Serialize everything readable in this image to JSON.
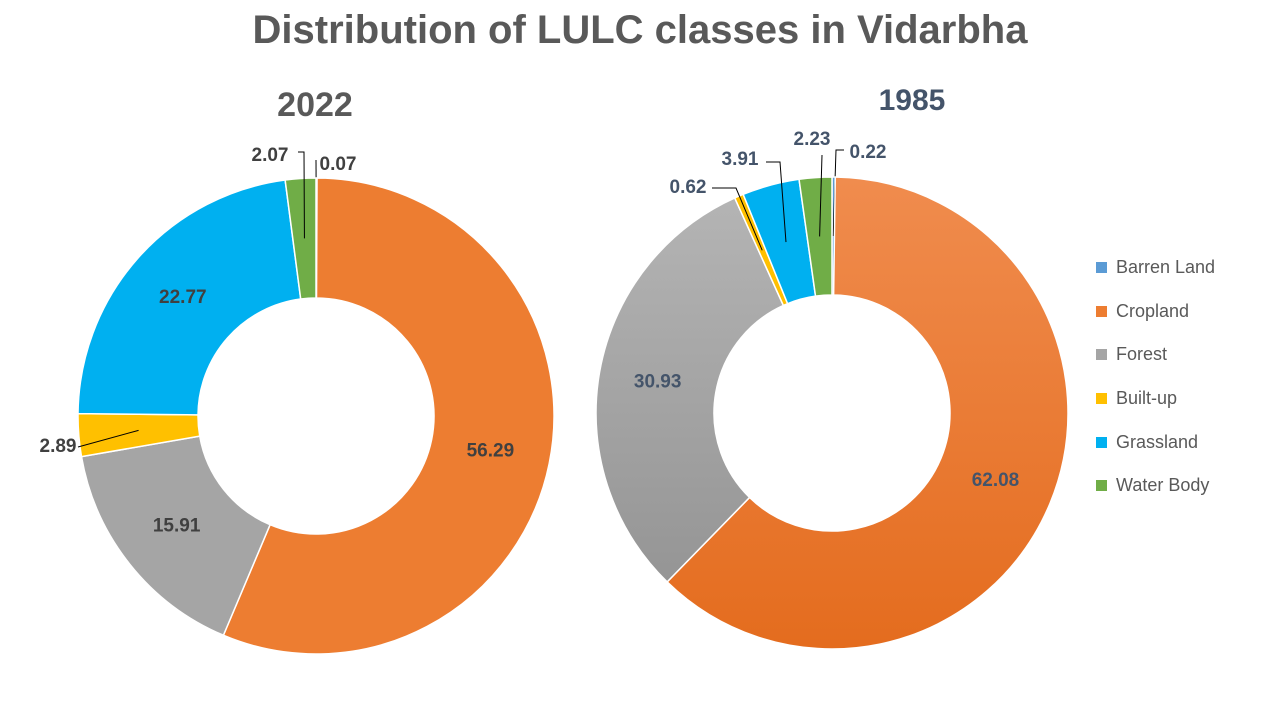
{
  "page_title": "Distribution of LULC classes in Vidarbha",
  "legend": [
    {
      "name": "Barren Land",
      "color": "#5B9BD5"
    },
    {
      "name": "Cropland",
      "color": "#ED7D31"
    },
    {
      "name": "Forest",
      "color": "#A5A5A5"
    },
    {
      "name": "Built-up",
      "color": "#FFC000"
    },
    {
      "name": "Grassland",
      "color": "#00B0F0"
    },
    {
      "name": "Water Body",
      "color": "#70AD47"
    }
  ],
  "chart_data": [
    {
      "type": "pie",
      "title": "2022",
      "categories": [
        "Barren Land",
        "Cropland",
        "Forest",
        "Built-up",
        "Grassland",
        "Water Body"
      ],
      "values": [
        0.07,
        56.29,
        15.91,
        2.89,
        22.77,
        2.07
      ],
      "labels": [
        "0.07",
        "56.29",
        "15.91",
        "2.89",
        "22.77",
        "2.07"
      ],
      "colors": [
        "#5B9BD5",
        "#ED7D31",
        "#A5A5A5",
        "#FFC000",
        "#00B0F0",
        "#70AD47"
      ]
    },
    {
      "type": "pie",
      "title": "1985",
      "categories": [
        "Barren Land",
        "Cropland",
        "Forest",
        "Built-up",
        "Grassland",
        "Water Body"
      ],
      "values": [
        0.22,
        62.08,
        30.93,
        0.62,
        3.91,
        2.23
      ],
      "labels": [
        "0.22",
        "62.08",
        "30.93",
        "0.62",
        "3.91",
        "2.23"
      ],
      "colors": [
        "#5B9BD5",
        "#ED7D31",
        "#A5A5A5",
        "#FFC000",
        "#00B0F0",
        "#70AD47"
      ]
    }
  ]
}
